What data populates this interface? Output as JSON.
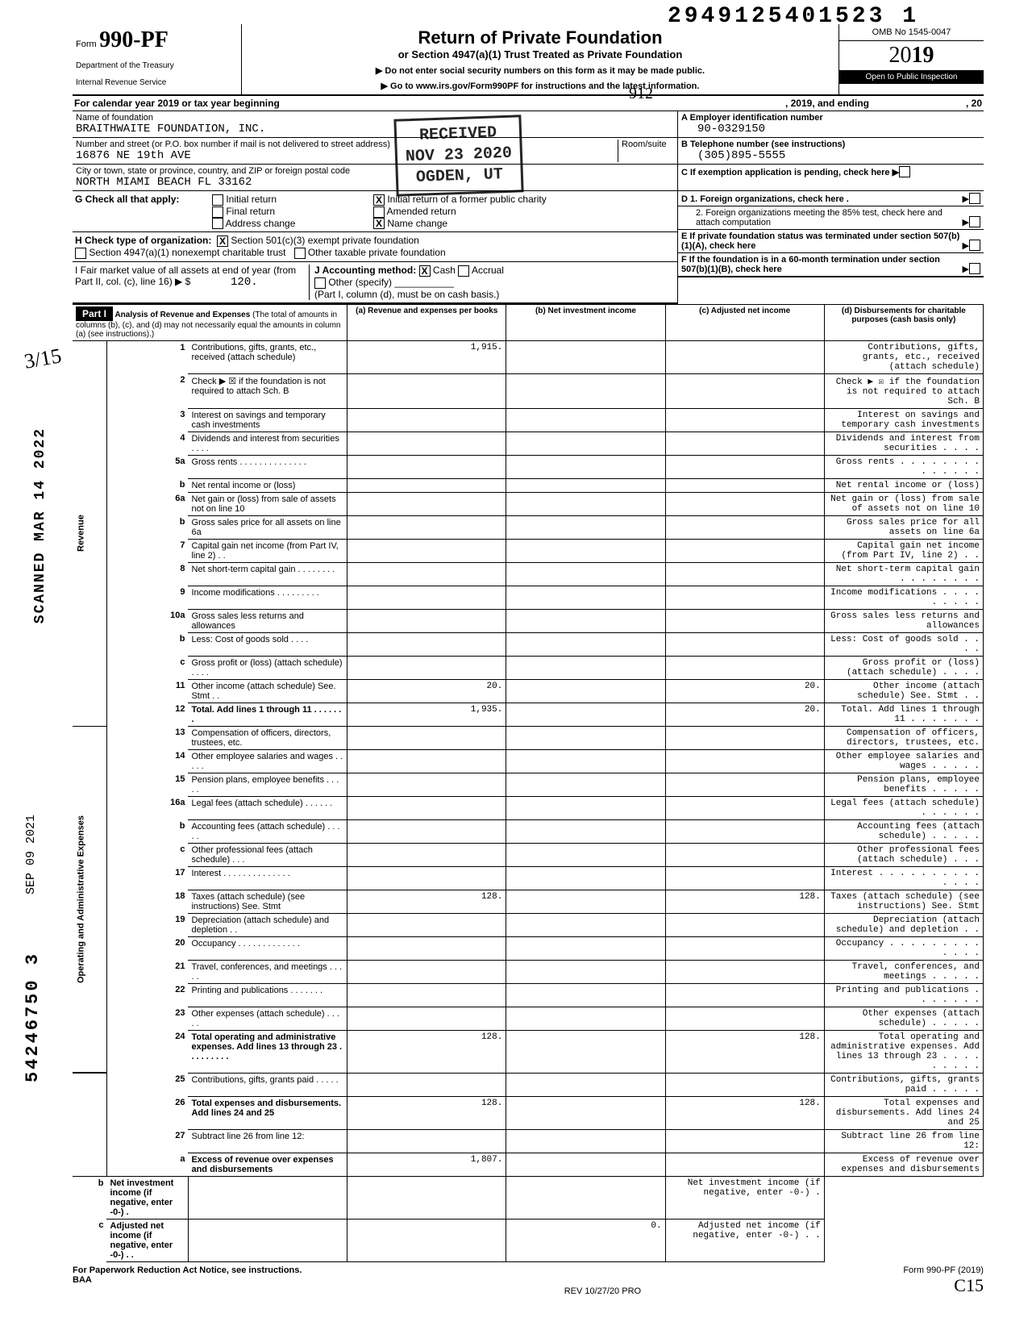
{
  "doc_id_top": "2949125401523 1",
  "header": {
    "form_label": "Form",
    "form_number": "990-PF",
    "dept1": "Department of the Treasury",
    "dept2": "Internal Revenue Service",
    "title": "Return of Private Foundation",
    "subtitle": "or Section 4947(a)(1) Trust Treated as Private Foundation",
    "note1": "▶ Do not enter social security numbers on this form as it may be made public.",
    "note2": "▶ Go to www.irs.gov/Form990PF for instructions and the latest information.",
    "omb": "OMB No 1545-0047",
    "year_prefix": "20",
    "year_suffix": "19",
    "open": "Open to Public Inspection"
  },
  "hand_912": "912",
  "cal": {
    "text1": "For calendar year 2019 or tax year beginning",
    "text2": ", 2019, and ending",
    "text3": ", 20"
  },
  "foundation": {
    "name_label": "Name of foundation",
    "name": "BRAITHWAITE FOUNDATION, INC.",
    "addr_label": "Number and street (or P.O. box number if mail is not delivered to street address)",
    "addr": "16876 NE 19th AVE",
    "room_label": "Room/suite",
    "city_label": "City or town, state or province, country, and ZIP or foreign postal code",
    "city": "NORTH MIAMI BEACH FL 33162"
  },
  "right_info": {
    "a_label": "A  Employer identification number",
    "a_val": "90-0329150",
    "b_label": "B  Telephone number (see instructions)",
    "b_val": "(305)895-5555",
    "c_label": "C  If exemption application is pending, check here ▶",
    "d1": "D  1. Foreign organizations, check here .",
    "d2": "2. Foreign organizations meeting the 85% test, check here and attach computation",
    "e": "E  If private foundation status was terminated under section 507(b)(1)(A), check here",
    "f": "F  If the foundation is in a 60-month termination under section 507(b)(1)(B), check here"
  },
  "g": {
    "label": "G  Check all that apply:",
    "opts": [
      "Initial return",
      "Final return",
      "Address change",
      "Initial return of a former public charity",
      "Amended return",
      "Name change"
    ]
  },
  "h": {
    "label": "H  Check type of organization:",
    "opt1": "Section 501(c)(3) exempt private foundation",
    "opt2": "Section 4947(a)(1) nonexempt charitable trust",
    "opt3": "Other taxable private foundation"
  },
  "i": {
    "left1": "I   Fair market value of all assets at end of year (from Part II, col. (c), line 16) ▶ $",
    "left_val": "120.",
    "j_label": "J  Accounting method:",
    "j_cash": "Cash",
    "j_accrual": "Accrual",
    "j_other": "Other (specify)",
    "j_note": "(Part I, column (d), must be on cash basis.)"
  },
  "part1": {
    "label": "Part I",
    "heading": "Analysis of Revenue and Expenses",
    "heading_note": "(The total of amounts in columns (b), (c), and (d) may not necessarily equal the amounts in column (a) (see instructions).)",
    "col_a": "(a) Revenue and expenses per books",
    "col_b": "(b) Net investment income",
    "col_c": "(c) Adjusted net income",
    "col_d": "(d) Disbursements for charitable purposes (cash basis only)"
  },
  "side_rev": "Revenue",
  "side_exp": "Operating and Administrative Expenses",
  "lines": [
    {
      "n": "1",
      "d": "Contributions, gifts, grants, etc., received (attach schedule)",
      "a": "1,915."
    },
    {
      "n": "2",
      "d": "Check ▶ ☒ if the foundation is not required to attach Sch. B"
    },
    {
      "n": "3",
      "d": "Interest on savings and temporary cash investments"
    },
    {
      "n": "4",
      "d": "Dividends and interest from securities . . . ."
    },
    {
      "n": "5a",
      "d": "Gross rents . . . . . . . . . . . . . ."
    },
    {
      "n": "b",
      "d": "Net rental income or (loss)"
    },
    {
      "n": "6a",
      "d": "Net gain or (loss) from sale of assets not on line 10"
    },
    {
      "n": "b",
      "d": "Gross sales price for all assets on line 6a"
    },
    {
      "n": "7",
      "d": "Capital gain net income (from Part IV, line 2) . ."
    },
    {
      "n": "8",
      "d": "Net short-term capital gain . . . . . . . ."
    },
    {
      "n": "9",
      "d": "Income modifications   . . . . . . . . ."
    },
    {
      "n": "10a",
      "d": "Gross sales less returns and allowances"
    },
    {
      "n": "b",
      "d": "Less: Cost of goods sold . . . ."
    },
    {
      "n": "c",
      "d": "Gross profit or (loss) (attach schedule) . . . ."
    },
    {
      "n": "11",
      "d": "Other income (attach schedule) See. Stmt . .",
      "a": "20.",
      "c": "20."
    },
    {
      "n": "12",
      "d": "Total. Add lines 1 through 11 . . . . . . .",
      "a": "1,935.",
      "c": "20.",
      "bold": true
    },
    {
      "n": "13",
      "d": "Compensation of officers, directors, trustees, etc."
    },
    {
      "n": "14",
      "d": "Other employee salaries and wages . . . . ."
    },
    {
      "n": "15",
      "d": "Pension plans, employee benefits   . . . . ."
    },
    {
      "n": "16a",
      "d": "Legal fees (attach schedule)   . . . . . ."
    },
    {
      "n": "b",
      "d": "Accounting fees (attach schedule)  . . . . ."
    },
    {
      "n": "c",
      "d": "Other professional fees (attach schedule) . . ."
    },
    {
      "n": "17",
      "d": "Interest  . . . . . . . . . . . . . ."
    },
    {
      "n": "18",
      "d": "Taxes (attach schedule) (see instructions) See. Stmt",
      "a": "128.",
      "c": "128."
    },
    {
      "n": "19",
      "d": "Depreciation (attach schedule) and depletion . ."
    },
    {
      "n": "20",
      "d": "Occupancy . . . . . . . . . . . . ."
    },
    {
      "n": "21",
      "d": "Travel, conferences, and meetings  . . . . ."
    },
    {
      "n": "22",
      "d": "Printing and publications   . . . . . . ."
    },
    {
      "n": "23",
      "d": "Other expenses (attach schedule)   . . . . ."
    },
    {
      "n": "24",
      "d": "Total operating and administrative expenses. Add lines 13 through 23 . . . . . . . . .",
      "a": "128.",
      "c": "128.",
      "bold": true
    },
    {
      "n": "25",
      "d": "Contributions, gifts, grants paid  . . . . ."
    },
    {
      "n": "26",
      "d": "Total expenses and disbursements. Add lines 24 and 25",
      "a": "128.",
      "c": "128.",
      "bold": true
    },
    {
      "n": "27",
      "d": "Subtract line 26 from line 12:"
    },
    {
      "n": "a",
      "d": "Excess of revenue over expenses and disbursements",
      "a": "1,807.",
      "bold": true
    },
    {
      "n": "b",
      "d": "Net investment income (if negative, enter -0-)  .",
      "bold": true
    },
    {
      "n": "c",
      "d": "Adjusted net income (if negative, enter -0-) . .",
      "c": "0.",
      "bold": true
    }
  ],
  "footer": {
    "left": "For Paperwork Reduction Act Notice, see instructions.",
    "baa": "BAA",
    "center": "REV 10/27/20 PRO",
    "right": "Form 990-PF (2019)",
    "hand": "C15"
  },
  "stamps": {
    "received": "RECEIVED\nNOV 23 2020\nOGDEN, UT",
    "scanned": "SCANNED MAR 14 2022",
    "sep": "SEP 09 2021",
    "side_num": "54246750 3",
    "frac": "3/15"
  }
}
